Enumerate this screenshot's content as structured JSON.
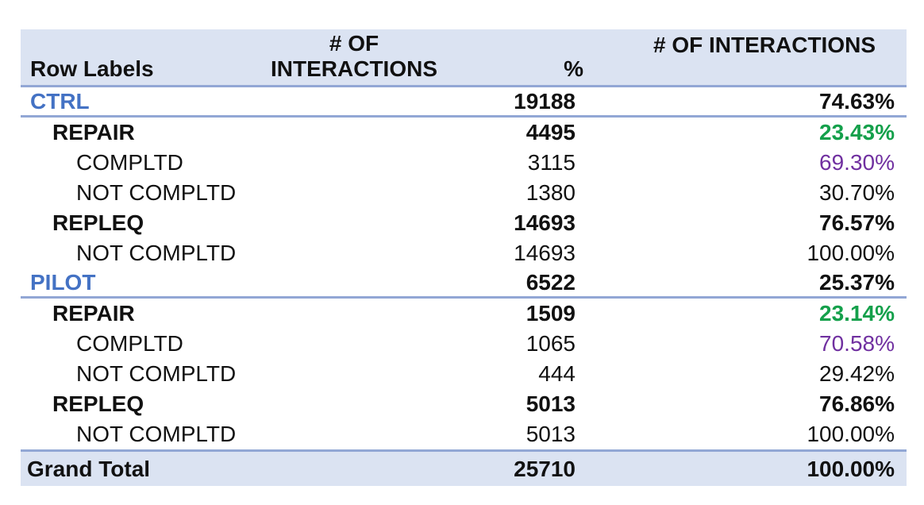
{
  "chart_data": {
    "type": "table",
    "header": {
      "row_labels": "Row Labels",
      "count_col_line1": "# OF",
      "count_col_line2": "INTERACTIONS",
      "pct_symbol": "%",
      "pct_col": "# OF INTERACTIONS"
    },
    "rows": [
      {
        "label": "CTRL",
        "indent": 0,
        "group": true,
        "bold": true,
        "count": 19188,
        "count_bold": true,
        "pct": "74.63%",
        "pct_bold": true,
        "pct_color": "black",
        "rule_below": true
      },
      {
        "label": "REPAIR",
        "indent": 1,
        "group": false,
        "bold": true,
        "count": 4495,
        "count_bold": true,
        "pct": "23.43%",
        "pct_bold": true,
        "pct_color": "green",
        "rule_below": false
      },
      {
        "label": "COMPLTD",
        "indent": 2,
        "group": false,
        "bold": false,
        "count": 3115,
        "count_bold": false,
        "pct": "69.30%",
        "pct_bold": false,
        "pct_color": "purple",
        "rule_below": false
      },
      {
        "label": "NOT COMPLTD",
        "indent": 2,
        "group": false,
        "bold": false,
        "count": 1380,
        "count_bold": false,
        "pct": "30.70%",
        "pct_bold": false,
        "pct_color": "black",
        "rule_below": false
      },
      {
        "label": "REPLEQ",
        "indent": 1,
        "group": false,
        "bold": true,
        "count": 14693,
        "count_bold": true,
        "pct": "76.57%",
        "pct_bold": true,
        "pct_color": "black",
        "rule_below": false
      },
      {
        "label": "NOT COMPLTD",
        "indent": 2,
        "group": false,
        "bold": false,
        "count": 14693,
        "count_bold": false,
        "pct": "100.00%",
        "pct_bold": false,
        "pct_color": "black",
        "rule_below": false
      },
      {
        "label": "PILOT",
        "indent": 0,
        "group": true,
        "bold": true,
        "count": 6522,
        "count_bold": true,
        "pct": "25.37%",
        "pct_bold": true,
        "pct_color": "black",
        "rule_below": true
      },
      {
        "label": "REPAIR",
        "indent": 1,
        "group": false,
        "bold": true,
        "count": 1509,
        "count_bold": true,
        "pct": "23.14%",
        "pct_bold": true,
        "pct_color": "green",
        "rule_below": false
      },
      {
        "label": "COMPLTD",
        "indent": 2,
        "group": false,
        "bold": false,
        "count": 1065,
        "count_bold": false,
        "pct": "70.58%",
        "pct_bold": false,
        "pct_color": "purple",
        "rule_below": false
      },
      {
        "label": "NOT COMPLTD",
        "indent": 2,
        "group": false,
        "bold": false,
        "count": 444,
        "count_bold": false,
        "pct": "29.42%",
        "pct_bold": false,
        "pct_color": "black",
        "rule_below": false
      },
      {
        "label": "REPLEQ",
        "indent": 1,
        "group": false,
        "bold": true,
        "count": 5013,
        "count_bold": true,
        "pct": "76.86%",
        "pct_bold": true,
        "pct_color": "black",
        "rule_below": false
      },
      {
        "label": "NOT COMPLTD",
        "indent": 2,
        "group": false,
        "bold": false,
        "count": 5013,
        "count_bold": false,
        "pct": "100.00%",
        "pct_bold": false,
        "pct_color": "black",
        "rule_below": false
      }
    ],
    "grand_total": {
      "label": "Grand Total",
      "count": 25710,
      "pct": "100.00%"
    }
  },
  "colors": {
    "band_bg": "#dbe3f2",
    "rule_line": "#92a7d5",
    "group_text": "#4472c4",
    "green_pct": "#14a04b",
    "purple_pct": "#7030a0"
  }
}
